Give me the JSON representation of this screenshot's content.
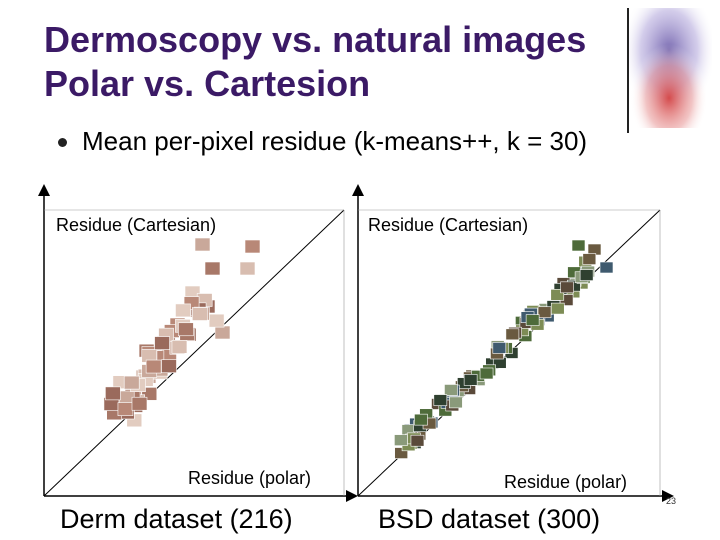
{
  "slide": {
    "title_line1": "Dermoscopy vs. natural images",
    "title_line2": "Polar vs. Cartesion",
    "bullet": "Mean per-pixel residue (k-means++, k = 30)",
    "slide_number": "23"
  },
  "plots": [
    {
      "y_label": "Residue (Cartesian)",
      "x_label": "Residue (polar)",
      "caption": "Derm dataset (216)"
    },
    {
      "y_label": "Residue (Cartesian)",
      "x_label": "Residue (polar)",
      "caption": "BSD dataset (300)"
    }
  ],
  "colors": {
    "title": "#3b1a66",
    "axis": "#000000",
    "derm_thumbnails": [
      "#c9a89a",
      "#b88877",
      "#d8bdb0",
      "#a87868",
      "#e2ccc0",
      "#9a6a5c"
    ],
    "bsd_thumbnails": [
      "#4e6b3a",
      "#6a5a40",
      "#3f5a6e",
      "#7d8c55",
      "#5a4a3a",
      "#8a9a7a",
      "#2f4030"
    ]
  }
}
